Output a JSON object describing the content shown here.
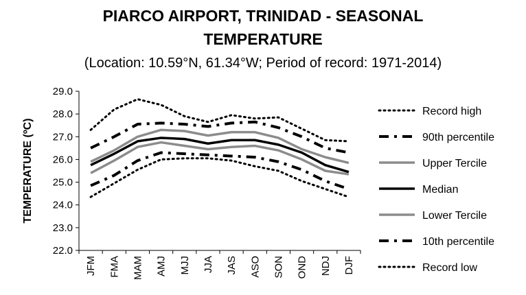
{
  "chart_data": {
    "type": "line",
    "title_line1": "PIARCO AIRPORT, TRINIDAD - SEASONAL",
    "title_line2": "TEMPERATURE",
    "subtitle": "(Location: 10.59°N, 61.34°W; Period of record: 1971-2014)",
    "ylabel": "TEMPERATURE (ºC)",
    "xlabel": "",
    "ylim": [
      22.0,
      29.0
    ],
    "yticks": [
      "22.0",
      "23.0",
      "24.0",
      "25.0",
      "26.0",
      "27.0",
      "28.0",
      "29.0"
    ],
    "categories": [
      "JFM",
      "FMA",
      "MAM",
      "AMJ",
      "MJJ",
      "JJA",
      "JAS",
      "ASO",
      "SON",
      "OND",
      "NDJ",
      "DJF"
    ],
    "legend_position": "right",
    "grid": false,
    "series": [
      {
        "name": "Record high",
        "style": "dotted",
        "color": "#000000",
        "values": [
          27.3,
          28.2,
          28.65,
          28.4,
          27.9,
          27.65,
          27.95,
          27.8,
          27.85,
          27.35,
          26.85,
          26.8
        ]
      },
      {
        "name": "90th percentile",
        "style": "dashdot",
        "color": "#000000",
        "values": [
          26.5,
          27.0,
          27.55,
          27.6,
          27.55,
          27.45,
          27.6,
          27.65,
          27.4,
          27.0,
          26.5,
          26.3
        ]
      },
      {
        "name": "Upper Tercile",
        "style": "solid",
        "color": "#8c8c8c",
        "values": [
          25.9,
          26.4,
          27.0,
          27.3,
          27.25,
          27.05,
          27.2,
          27.2,
          26.95,
          26.45,
          26.1,
          25.85
        ]
      },
      {
        "name": "Median",
        "style": "solid",
        "color": "#000000",
        "values": [
          25.75,
          26.25,
          26.8,
          26.95,
          26.9,
          26.7,
          26.85,
          26.85,
          26.65,
          26.3,
          25.75,
          25.45
        ]
      },
      {
        "name": "Lower Tercile",
        "style": "solid",
        "color": "#8c8c8c",
        "values": [
          25.4,
          25.95,
          26.55,
          26.75,
          26.6,
          26.45,
          26.55,
          26.6,
          26.4,
          26.0,
          25.5,
          25.35
        ]
      },
      {
        "name": "10th percentile",
        "style": "dashdot",
        "color": "#000000",
        "values": [
          24.85,
          25.3,
          25.95,
          26.3,
          26.25,
          26.2,
          26.15,
          26.1,
          25.9,
          25.55,
          25.05,
          24.7
        ]
      },
      {
        "name": "Record low",
        "style": "dotted",
        "color": "#000000",
        "values": [
          24.35,
          24.95,
          25.55,
          26.0,
          26.05,
          26.05,
          25.95,
          25.7,
          25.5,
          25.05,
          24.7,
          24.35
        ]
      }
    ]
  }
}
